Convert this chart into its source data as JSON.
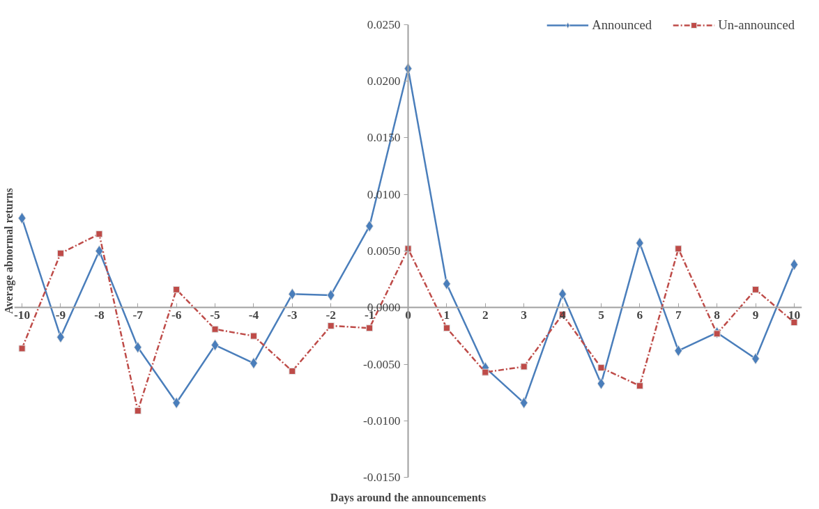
{
  "chart_data": {
    "type": "line",
    "xlabel": "Days around the announcements",
    "ylabel": "Average abnormal returns",
    "x": [
      -10,
      -9,
      -8,
      -7,
      -6,
      -5,
      -4,
      -3,
      -2,
      -1,
      0,
      1,
      2,
      3,
      4,
      5,
      6,
      7,
      8,
      9,
      10
    ],
    "xlim": [
      -10.2,
      10.2
    ],
    "xticks": [
      -10,
      -9,
      -8,
      -7,
      -6,
      -5,
      -4,
      -3,
      -2,
      -1,
      0,
      1,
      2,
      3,
      4,
      5,
      6,
      7,
      8,
      9,
      10
    ],
    "ylim": [
      -0.015,
      0.025
    ],
    "yticks": [
      {
        "value": -0.015,
        "label": "-0.0150"
      },
      {
        "value": -0.01,
        "label": "-0.0100"
      },
      {
        "value": -0.005,
        "label": "-0.0050"
      },
      {
        "value": 0,
        "label": "0.0000"
      },
      {
        "value": 0.005,
        "label": "0.0050"
      },
      {
        "value": 0.01,
        "label": "0.0100"
      },
      {
        "value": 0.015,
        "label": "0.0150"
      },
      {
        "value": 0.02,
        "label": "0.0200"
      },
      {
        "value": 0.025,
        "label": "0.0250"
      }
    ],
    "grid": false,
    "legend": "top right",
    "series": [
      {
        "name": "Announced",
        "color": "#4a7ebb",
        "marker": "diamond",
        "line_style": "solid",
        "values": [
          0.0079,
          -0.0026,
          0.005,
          -0.0035,
          -0.0084,
          -0.0033,
          -0.0049,
          0.0012,
          0.0011,
          0.0072,
          0.0211,
          0.0021,
          -0.0053,
          -0.0084,
          0.0012,
          -0.0067,
          0.0057,
          -0.0038,
          -0.0022,
          -0.0045,
          0.0038
        ]
      },
      {
        "name": "Un-announced",
        "color": "#be4b48",
        "marker": "square",
        "line_style": "dashed",
        "values": [
          -0.0036,
          0.0048,
          0.0065,
          -0.0091,
          0.0016,
          -0.0019,
          -0.0025,
          -0.0056,
          -0.0016,
          -0.0018,
          0.0052,
          -0.0018,
          -0.0057,
          -0.0052,
          -0.0006,
          -0.0053,
          -0.0069,
          0.0052,
          -0.0023,
          0.0016,
          -0.0013
        ]
      }
    ]
  }
}
